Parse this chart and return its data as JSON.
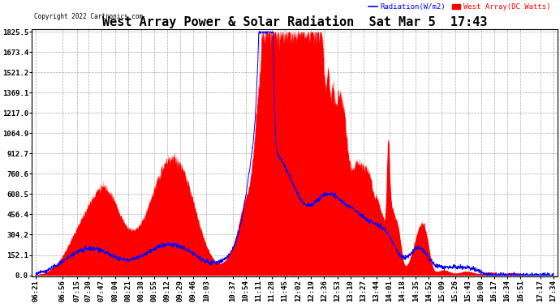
{
  "title": "West Array Power & Solar Radiation  Sat Mar 5  17:43",
  "copyright": "Copyright 2022 Cartronics.com",
  "legend_radiation": "Radiation(W/m2)",
  "legend_west": "West Array(DC Watts)",
  "legend_radiation_color": "blue",
  "legend_west_color": "red",
  "background_color": "#ffffff",
  "plot_bg_color": "#ffffff",
  "grid_color": "#aaaaaa",
  "title_fontsize": 11,
  "tick_label_fontsize": 6.5,
  "y_ticks": [
    0.0,
    152.1,
    304.2,
    456.4,
    608.5,
    760.6,
    912.7,
    1064.9,
    1217.0,
    1369.1,
    1521.2,
    1673.4,
    1825.5
  ],
  "x_tick_labels": [
    "06:21",
    "06:56",
    "07:15",
    "07:30",
    "07:47",
    "08:04",
    "08:21",
    "08:38",
    "08:55",
    "09:12",
    "09:29",
    "09:46",
    "10:03",
    "10:37",
    "10:54",
    "11:11",
    "11:28",
    "11:45",
    "12:02",
    "12:19",
    "12:36",
    "12:53",
    "13:10",
    "13:27",
    "13:44",
    "14:01",
    "14:18",
    "14:35",
    "14:52",
    "15:09",
    "15:26",
    "15:43",
    "16:00",
    "16:17",
    "16:34",
    "16:51",
    "17:17",
    "17:34"
  ],
  "west_fill_color": "red",
  "radiation_line_color": "blue",
  "ymax": 1825.5,
  "ymin": 0.0
}
